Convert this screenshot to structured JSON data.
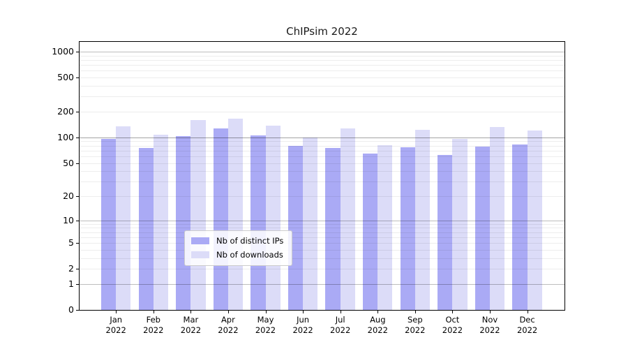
{
  "chart_data": {
    "type": "bar",
    "title": "ChIPsim 2022",
    "scale": "log1p",
    "categories": [
      "Jan",
      "Feb",
      "Mar",
      "Apr",
      "May",
      "Jun",
      "Jul",
      "Aug",
      "Sep",
      "Oct",
      "Nov",
      "Dec"
    ],
    "x_axis": {
      "year_label": "2022"
    },
    "series": [
      {
        "name": "Nb of distinct IPs",
        "color": "#aaaaf5",
        "values": [
          97,
          75,
          104,
          127,
          106,
          80,
          75,
          65,
          76,
          62,
          78,
          83
        ]
      },
      {
        "name": "Nb of downloads",
        "color": "#dcdcf8",
        "values": [
          136,
          107,
          161,
          166,
          137,
          100,
          127,
          81,
          122,
          96,
          132,
          120
        ]
      }
    ],
    "y_axis": {
      "ticks": [
        {
          "value": 1000,
          "label": "1000"
        },
        {
          "value": 500,
          "label": "500"
        },
        {
          "value": 200,
          "label": "200"
        },
        {
          "value": 100,
          "label": "100"
        },
        {
          "value": 50,
          "label": "50"
        },
        {
          "value": 20,
          "label": "20"
        },
        {
          "value": 10,
          "label": "10"
        },
        {
          "value": 5,
          "label": "5"
        },
        {
          "value": 2,
          "label": "2"
        },
        {
          "value": 1,
          "label": "1"
        },
        {
          "value": 0,
          "label": "0"
        }
      ],
      "minor_gridlines": [
        2,
        3,
        4,
        5,
        6,
        7,
        8,
        9,
        20,
        30,
        40,
        50,
        60,
        70,
        80,
        90,
        200,
        300,
        400,
        500,
        600,
        700,
        800,
        900
      ],
      "major_gridlines": [
        1,
        10,
        1000
      ],
      "emphasized_gridlines": [
        100
      ],
      "axis_max": 1300,
      "axis_min": 0
    },
    "legend": {
      "position": "lower center"
    },
    "grid": true
  },
  "colors": {
    "bar_distinct_ips": "#aaaaf5",
    "bar_downloads": "#dcdcf8",
    "axis_frame": "#000000",
    "background": "#ffffff"
  }
}
